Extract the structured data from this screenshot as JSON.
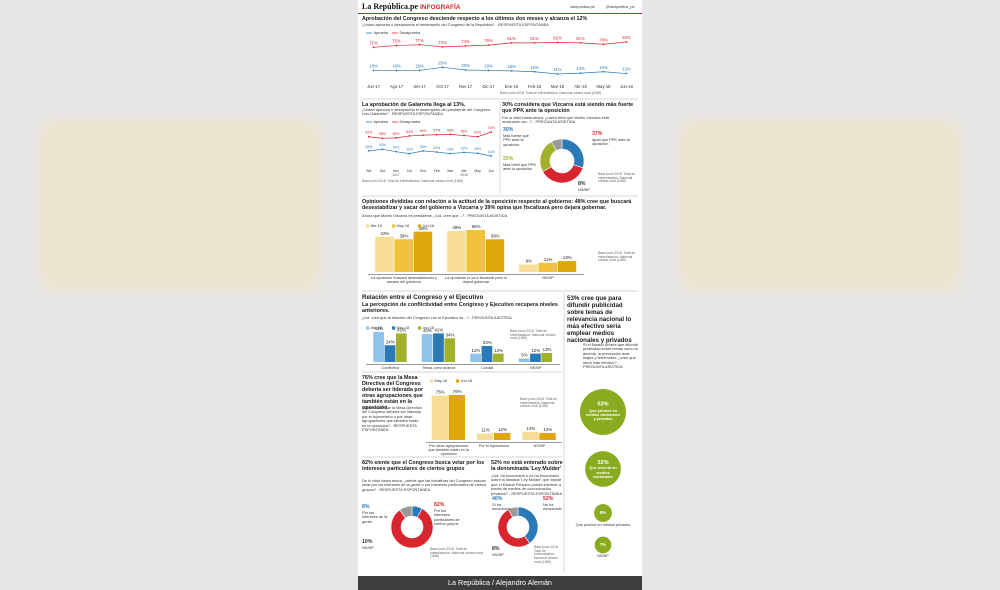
{
  "header": {
    "brand": "La República.pe",
    "section": "INFOGRAFÍA",
    "facebook": "/larepublica.pe",
    "twitter": "@larepublica_pe"
  },
  "section_title": "Relación entre el Congreso y el Ejecutivo",
  "footer": "La República / Alejandro Alemán",
  "chart_data": [
    {
      "type": "line",
      "title": "Aprobación del Congreso desciende respecto a los últimos dos meses y alcanza el 12%",
      "subtitle": "¿Usted aprueba o desaprueba el desempeño del Congreso de la República? - RESPUESTA ESPONTÁNEA",
      "categories": [
        "Jun-17",
        "Ago-17",
        "Set-17",
        "Oct-17",
        "Nov-17",
        "Dic-17",
        "Ene-18",
        "Feb-18",
        "Mar-18",
        "Abr-18",
        "May-18",
        "Jun-18"
      ],
      "series": [
        {
          "name": "Aprueba",
          "color": "#2a7ab8",
          "values": [
            19,
            19,
            19,
            26,
            20,
            19,
            18,
            16,
            11,
            13,
            16,
            12
          ],
          "value_labels": [
            "19%",
            "19%",
            "19%",
            "26%",
            "20%",
            "19%",
            "18%",
            "16%",
            "11%",
            "13%",
            "16%",
            "12%"
          ]
        },
        {
          "name": "Desaprueba",
          "color": "#d7262e",
          "values": [
            71,
            75,
            77,
            72,
            74,
            76,
            81,
            81,
            82,
            81,
            78,
            83
          ],
          "value_labels": [
            "71%",
            "75%",
            "77%",
            "72%",
            "74%",
            "76%",
            "81%",
            "81%",
            "82%",
            "81%",
            "78%",
            "83%"
          ]
        }
      ],
      "note": "Base junio 2018. Total de entrevistados. Nacional urbano rural (1188)"
    },
    {
      "type": "line",
      "title": "La aprobación de Galarreta llega al 13%.",
      "subtitle": "¿Usted aprueba o desaprueba el desempeño del presidente del Congreso, Luis Galarreta? - RESPUESTA ESPONTÁNEA",
      "categories": [
        "Set",
        "Oct",
        "Nov",
        "Dic",
        "Ene",
        "Feb",
        "Mar",
        "Abr",
        "May",
        "Jun"
      ],
      "category_years": [
        null,
        null,
        "2017",
        null,
        null,
        null,
        null,
        "2018",
        null,
        null
      ],
      "series": [
        {
          "name": "Aprueba",
          "color": "#2a7ab8",
          "values": [
            26,
            30,
            24,
            19,
            26,
            23,
            19,
            22,
            20,
            13
          ],
          "value_labels": [
            "26%",
            "30%",
            "24%",
            "19%",
            "26%",
            "23%",
            "19%",
            "22%",
            "20%",
            "13%"
          ]
        },
        {
          "name": "Desaprueba",
          "color": "#d7262e",
          "values": [
            62,
            58,
            59,
            64,
            66,
            67,
            68,
            65,
            62,
            74
          ],
          "value_labels": [
            "62%",
            "58%",
            "59%",
            "64%",
            "66%",
            "67%",
            "68%",
            "65%",
            "62%",
            "74%"
          ]
        }
      ],
      "note": "Base junio 2018. Total de entrevistados. Nacional urbano rural (1188)"
    },
    {
      "type": "pie",
      "title": "30% considera que Vizcarra está siendo más fuerte que PPK ante la oposición",
      "subtitle": "Por lo visto hasta ahora, ¿usted diría que Martín Vizcarra está mostrando ser...? - PREGUNTA ASISTIDA",
      "categories": [
        "Más fuerte que PPK ante la oposición",
        "Igual que PPK ante la oposición",
        "Más débil que PPK ante la oposición",
        "NS/NP"
      ],
      "values": [
        30,
        37,
        25,
        8
      ],
      "value_labels": [
        "30%",
        "37%",
        "25%",
        "8%"
      ],
      "colors": [
        "#2a7ab8",
        "#d7262e",
        "#a3b02c",
        "#9a9a9a"
      ],
      "note": "Base junio 2018. Total de entrevistados. Nacional urbano rural (1188)"
    },
    {
      "type": "bar",
      "title": "Opiniones divididas con relación a la actitud de la oposición respecto al gobierno: 48% cree que buscará desestabilizar y sacar del gobierno a Vizcarra y 39% opina que fiscalizará pero dejará gobernar.",
      "subtitle": "Ahora que Martín Vizcarra es presidente, ¿Ud. cree que...? - PREGUNTA ASISTIDA",
      "categories": [
        "La oposición buscará desestabilizarlo y sacarlo del gobierno",
        "La oposición lo va a fiscalizar pero lo dejará gobernar",
        "NS/NP"
      ],
      "series": [
        {
          "name": "Abr-18",
          "color": "#f6dc94",
          "values": [
            42,
            49,
            9
          ],
          "value_labels": [
            "42%",
            "49%",
            "9%"
          ]
        },
        {
          "name": "May-18",
          "color": "#f0c23c",
          "values": [
            39,
            50,
            11
          ],
          "value_labels": [
            "39%",
            "50%",
            "11%"
          ]
        },
        {
          "name": "Jun-18",
          "color": "#e0a70c",
          "values": [
            48,
            39,
            13
          ],
          "value_labels": [
            "48%",
            "39%",
            "13%"
          ]
        }
      ],
      "note": "Base junio 2018. Total de entrevistados. Nacional urbano rural (1188)"
    },
    {
      "type": "bar",
      "title": "La percepción de conflictividad entre Congreso y Ejecutivo recupera niveles anteriores.",
      "subtitle": "¿Ud. cree que la relación del Congreso con el Ejecutivo es...? - PREGUNTA ASISTIDA",
      "categories": [
        "Conflictiva",
        "Tensa, pero avanza",
        "Cordial",
        "NS/NP"
      ],
      "series": [
        {
          "name": "Abr-18",
          "color": "#8fc3ea",
          "values": [
            43,
            40,
            12,
            5
          ],
          "value_labels": [
            "43%",
            "40%",
            "12%",
            "5%"
          ]
        },
        {
          "name": "May-18",
          "color": "#2a7ab8",
          "values": [
            24,
            41,
            23,
            12
          ],
          "value_labels": [
            "24%",
            "41%",
            "23%",
            "12%"
          ]
        },
        {
          "name": "Jun-18",
          "color": "#a3b02c",
          "values": [
            41,
            34,
            12,
            13
          ],
          "value_labels": [
            "41%",
            "34%",
            "12%",
            "13%"
          ]
        }
      ],
      "note": "Base junio 2018. Total de entrevistados. Nacional urbano rural (1188)"
    },
    {
      "type": "bar",
      "title": "76% cree que la Mesa Directiva del Congreso debería ser liderada por otras agrupaciones que también están en la oposición.",
      "subtitle": "¿Usted cree que la Mesa Directiva del Congreso debería ser liderada por el fujimorismo o por otras agrupaciones que también están en la oposición? - RESPUESTA ESPONTÁNEA",
      "categories": [
        "Por otras agrupaciones que también están en la oposición",
        "Por el fujimorismo",
        "NS/NP"
      ],
      "series": [
        {
          "name": "May-18",
          "color": "#f6dc94",
          "values": [
            75,
            11,
            14
          ],
          "value_labels": [
            "75%",
            "11%",
            "14%"
          ]
        },
        {
          "name": "Jun-18",
          "color": "#e0a70c",
          "values": [
            76,
            12,
            12
          ],
          "value_labels": [
            "76%",
            "12%",
            "12%"
          ]
        }
      ],
      "note": "Base junio 2018. Total de entrevistados. Nacional urbano rural (1188)"
    },
    {
      "type": "pie",
      "title": "82% siente que el Congreso busca velar por los intereses particulares de ciertos grupos",
      "subtitle": "De lo visto hasta ahora, ¿siente que las iniciativas del Congreso buscan velar por los intereses de la gente o por intereses particulares de ciertos grupos? - RESPUESTA ESPONTÁNEA",
      "categories": [
        "Por los intereses de la gente",
        "Por los intereses particulares de ciertos grupos",
        "NS/NP"
      ],
      "values": [
        8,
        82,
        10
      ],
      "value_labels": [
        "8%",
        "82%",
        "10%"
      ],
      "colors": [
        "#2a7ab8",
        "#d7262e",
        "#9a9a9a"
      ],
      "note": "Base junio 2018. Total de entrevistados. Nacional urbano rural (1188)"
    },
    {
      "type": "pie",
      "title": "52% no está enterado sobre la denominada 'Ley Mulder'",
      "subtitle": "¿Ud. ha escuchado o no ha escuchado sobre la llamada 'Ley Mulder' que impide que el Estado Peruano pueda informar a través de medios de comunicación privados? - RESPUESTA ESPONTÁNEA",
      "categories": [
        "Sí ha escuchado",
        "No ha escuchado",
        "NS/NP"
      ],
      "values": [
        40,
        52,
        8
      ],
      "value_labels": [
        "40%",
        "52%",
        "8%"
      ],
      "colors": [
        "#2a7ab8",
        "#d7262e",
        "#9a9a9a"
      ],
      "note": "Base junio 2018. Total de entrevistados. Nacional urbano rural (1188)"
    },
    {
      "type": "bubble",
      "title": "53% cree que para difundir publicidad sobre temas de relevancia nacional lo más efectivo sería emplear medios nacionales y privados",
      "subtitle": "Si el Estado tuviera que difundir publicidad sobre temas como la anemia, la prevención ante friajes y terremotos, ¿cree que sería más efectivo? - PREGUNTA ASISTIDA",
      "categories": [
        "Que priorice en medios nacionales y privados",
        "Que invierta en medios nacionales",
        "Que priorice en medios privados",
        "NS/NP"
      ],
      "values": [
        53,
        32,
        8,
        7
      ],
      "value_labels": [
        "53%",
        "32%",
        "8%",
        "7%"
      ],
      "color": "#8aab1f"
    }
  ]
}
